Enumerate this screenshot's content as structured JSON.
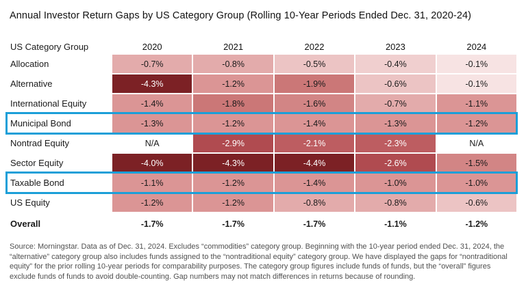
{
  "title": "Annual Investor Return Gaps by US Category Group (Rolling 10-Year Periods Ended Dec. 31, 2020-24)",
  "chart_data": {
    "type": "heatmap",
    "title": "Annual Investor Return Gaps by US Category Group (Rolling 10-Year Periods Ended Dec. 31, 2020-24)",
    "row_header_label": "US Category Group",
    "columns": [
      "2020",
      "2021",
      "2022",
      "2023",
      "2024"
    ],
    "rows": [
      {
        "label": "Allocation",
        "highlighted": false,
        "values": [
          -0.7,
          -0.8,
          -0.5,
          -0.4,
          -0.1
        ]
      },
      {
        "label": "Alternative",
        "highlighted": false,
        "values": [
          -4.3,
          -1.2,
          -1.9,
          -0.6,
          -0.1
        ]
      },
      {
        "label": "International Equity",
        "highlighted": false,
        "values": [
          -1.4,
          -1.8,
          -1.6,
          -0.7,
          -1.1
        ]
      },
      {
        "label": "Municipal Bond",
        "highlighted": true,
        "values": [
          -1.3,
          -1.2,
          -1.4,
          -1.3,
          -1.2
        ]
      },
      {
        "label": "Nontrad Equity",
        "highlighted": false,
        "values": [
          null,
          -2.9,
          -2.1,
          -2.3,
          null
        ]
      },
      {
        "label": "Sector Equity",
        "highlighted": false,
        "values": [
          -4.0,
          -4.3,
          -4.4,
          -2.6,
          -1.5
        ]
      },
      {
        "label": "Taxable Bond",
        "highlighted": true,
        "values": [
          -1.1,
          -1.2,
          -1.4,
          -1.0,
          -1.0
        ]
      },
      {
        "label": "US Equity",
        "highlighted": false,
        "values": [
          -1.2,
          -1.2,
          -0.8,
          -0.8,
          -0.6
        ]
      }
    ],
    "overall": {
      "label": "Overall",
      "values": [
        -1.7,
        -1.7,
        -1.7,
        -1.1,
        -1.2
      ]
    },
    "na_text": "N/A",
    "units": "%",
    "highlighted_rows": [
      "Municipal Bond",
      "Taxable Bond"
    ],
    "color_scale": [
      {
        "max_magnitude": 0.25,
        "color": "#f7e3e3"
      },
      {
        "max_magnitude": 0.45,
        "color": "#f0cfcf"
      },
      {
        "max_magnitude": 0.65,
        "color": "#ecc4c4"
      },
      {
        "max_magnitude": 0.95,
        "color": "#e3abab"
      },
      {
        "max_magnitude": 1.45,
        "color": "#db9595"
      },
      {
        "max_magnitude": 1.75,
        "color": "#d28585"
      },
      {
        "max_magnitude": 1.95,
        "color": "#cb7777"
      },
      {
        "max_magnitude": 2.45,
        "color": "#bd5d61"
      },
      {
        "max_magnitude": 3.05,
        "color": "#b04b50"
      },
      {
        "max_magnitude": 99,
        "color": "#7c2125"
      }
    ],
    "light_text_threshold": 2.0,
    "text_dark": "#1a1a1a",
    "text_light": "#ffffff",
    "highlight_border_color": "#1b9fd8"
  },
  "footnote": "Source: Morningstar. Data as of Dec. 31, 2024. Excludes “commodities” category group. Beginning with the 10-year period ended Dec. 31, 2024, the “alternative” category group also includes funds assigned to the “nontraditional equity” category group. We have displayed the gaps for “nontraditional equity” for the prior rolling 10-year periods for comparability purposes. The category group figures include funds of funds, but the “overall” figures exclude funds of funds to avoid double-counting. Gap numbers may not match differences in returns because of rounding."
}
